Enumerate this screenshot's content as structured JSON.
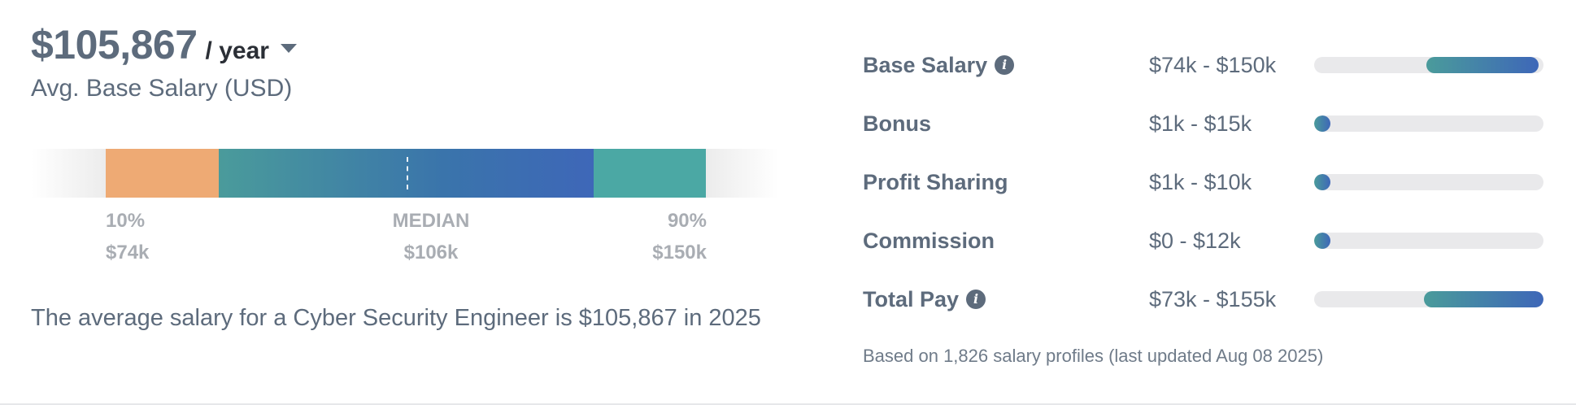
{
  "headline": {
    "amount": "$105,867",
    "period": "/ year",
    "subtitle": "Avg. Base Salary (USD)"
  },
  "distribution": {
    "p10_label": "10%",
    "p10_value": "$74k",
    "median_label": "MEDIAN",
    "median_value": "$106k",
    "p90_label": "90%",
    "p90_value": "$150k"
  },
  "summary": "The average salary for a Cyber Security Engineer is $105,867 in 2025",
  "pay_components": [
    {
      "label": "Base Salary",
      "range": "$74k - $150k",
      "has_info": true,
      "fill_start": 0.49,
      "fill_end": 0.98
    },
    {
      "label": "Bonus",
      "range": "$1k - $15k",
      "has_info": false,
      "fill_start": 0.0,
      "fill_end": 0.07
    },
    {
      "label": "Profit Sharing",
      "range": "$1k - $10k",
      "has_info": false,
      "fill_start": 0.0,
      "fill_end": 0.05
    },
    {
      "label": "Commission",
      "range": "$0 - $12k",
      "has_info": false,
      "fill_start": 0.0,
      "fill_end": 0.05
    },
    {
      "label": "Total Pay",
      "range": "$73k - $155k",
      "has_info": true,
      "fill_start": 0.48,
      "fill_end": 1.0
    }
  ],
  "footnote": "Based on 1,826 salary profiles (last updated Aug 08 2025)",
  "colors": {
    "orange": "#eeaa74",
    "teal": "#4ba8a4",
    "blue": "#3e67b8",
    "text": "#5d6b7c"
  }
}
